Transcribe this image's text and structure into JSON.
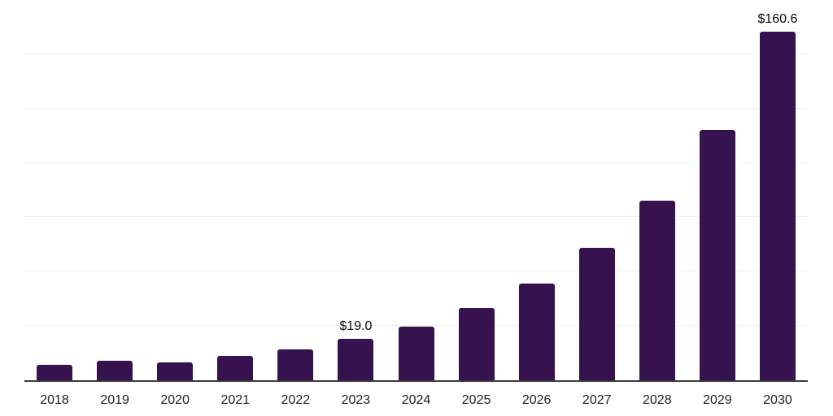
{
  "chart_data": {
    "type": "bar",
    "title": "",
    "xlabel": "",
    "ylabel": "",
    "categories": [
      "2018",
      "2019",
      "2020",
      "2021",
      "2022",
      "2023",
      "2024",
      "2025",
      "2026",
      "2027",
      "2028",
      "2029",
      "2030"
    ],
    "values": [
      7.0,
      8.8,
      8.4,
      11.4,
      14.1,
      19.0,
      24.7,
      33.2,
      44.5,
      61.1,
      82.8,
      115.2,
      160.6
    ],
    "point_labels": [
      "",
      "",
      "",
      "",
      "",
      "$19.0",
      "",
      "",
      "",
      "",
      "",
      "",
      "$160.6"
    ],
    "ylim": [
      0,
      175
    ],
    "gridline_interval": 25,
    "grid": true,
    "legend": false,
    "y_axis_labels_visible": false,
    "colors": {
      "bar": "#36124E",
      "axis_line": "#3C3C3C",
      "gridline": "#F0F0F2",
      "x_label_text": "#202020",
      "bar_label_text": "#0A0A0A",
      "background": "#FFFFFF"
    }
  }
}
